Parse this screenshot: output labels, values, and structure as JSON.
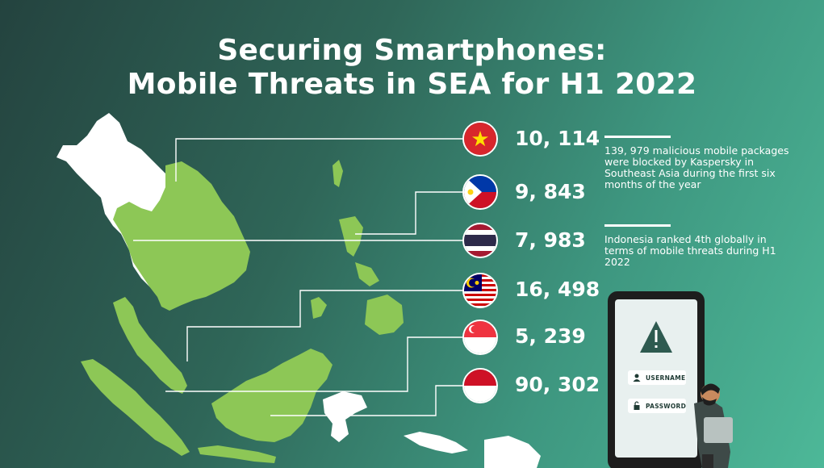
{
  "title": {
    "line1": "Securing Smartphones:",
    "line2": "Mobile Threats in SEA for H1 2022"
  },
  "countries": [
    {
      "flag": "vietnam-flag",
      "count": "10, 114"
    },
    {
      "flag": "philippines-flag",
      "count": "9, 843"
    },
    {
      "flag": "thailand-flag",
      "count": "7, 983"
    },
    {
      "flag": "malaysia-flag",
      "count": "16, 498"
    },
    {
      "flag": "singapore-flag",
      "count": "5, 239"
    },
    {
      "flag": "indonesia-flag",
      "count": "90, 302"
    }
  ],
  "notes": [
    "139, 979 malicious mobile packages were blocked by Kaspersky in Southeast Asia during the first six months of the year",
    "Indonesia ranked 4th globally in terms of mobile threats during H1 2022"
  ],
  "phone": {
    "username_label": "USERNAME",
    "password_label": "PASSWORD"
  },
  "colors": {
    "map_highlight": "#8dc756",
    "map_neighbor": "#ffffff",
    "connector": "#ffffff",
    "warning_icon": "#2e5a50"
  }
}
